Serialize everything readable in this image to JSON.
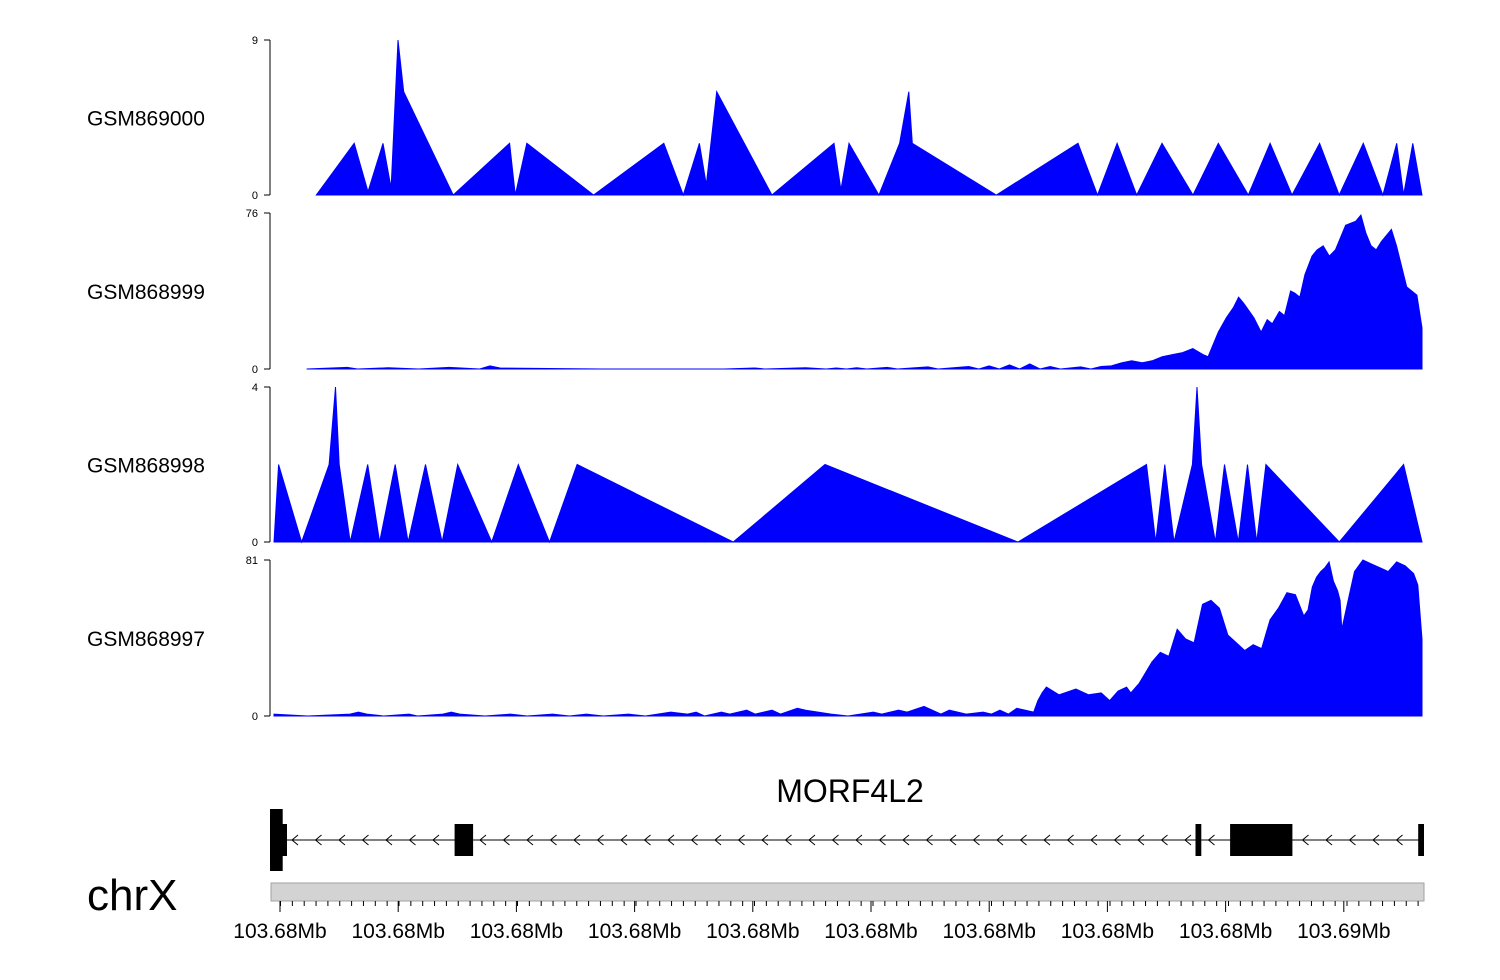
{
  "chart_data": {
    "type": "area",
    "x_unit": "Mb",
    "chromosome": "chrX",
    "gene_name": "MORF4L2",
    "x_tick_labels": [
      "103.68Mb",
      "103.68Mb",
      "103.68Mb",
      "103.68Mb",
      "103.68Mb",
      "103.68Mb",
      "103.68Mb",
      "103.68Mb",
      "103.68Mb",
      "103.69Mb"
    ],
    "color": "#0000FF",
    "tracks": [
      {
        "name": "GSM869000",
        "ylim": [
          0,
          9
        ],
        "tick_labels": [
          "0",
          "9"
        ],
        "points": [
          [
            0.035,
            0
          ],
          [
            0.068,
            3
          ],
          [
            0.08,
            0.2
          ],
          [
            0.093,
            3
          ],
          [
            0.1,
            0.4
          ],
          [
            0.106,
            9
          ],
          [
            0.111,
            6
          ],
          [
            0.154,
            0
          ],
          [
            0.203,
            3
          ],
          [
            0.208,
            0
          ],
          [
            0.218,
            3
          ],
          [
            0.276,
            0
          ],
          [
            0.337,
            3
          ],
          [
            0.354,
            0
          ],
          [
            0.368,
            3
          ],
          [
            0.374,
            0.6
          ],
          [
            0.383,
            6
          ],
          [
            0.431,
            0
          ],
          [
            0.485,
            3
          ],
          [
            0.491,
            0.3
          ],
          [
            0.498,
            3
          ],
          [
            0.524,
            0
          ],
          [
            0.542,
            3
          ],
          [
            0.55,
            6
          ],
          [
            0.553,
            3
          ],
          [
            0.626,
            0
          ],
          [
            0.697,
            3
          ],
          [
            0.714,
            0
          ],
          [
            0.731,
            3
          ],
          [
            0.748,
            0
          ],
          [
            0.77,
            3
          ],
          [
            0.797,
            0
          ],
          [
            0.819,
            3
          ],
          [
            0.845,
            0
          ],
          [
            0.864,
            3
          ],
          [
            0.883,
            0
          ],
          [
            0.907,
            3
          ],
          [
            0.924,
            0
          ],
          [
            0.945,
            3
          ],
          [
            0.962,
            0
          ],
          [
            0.974,
            3
          ],
          [
            0.98,
            0
          ],
          [
            0.988,
            3
          ],
          [
            0.996,
            0
          ]
        ]
      },
      {
        "name": "GSM868999",
        "ylim": [
          0,
          76
        ],
        "tick_labels": [
          "0",
          "76"
        ],
        "points": [
          [
            0.03,
            0
          ],
          [
            0.07,
            0.8
          ],
          [
            0.08,
            0
          ],
          [
            0.11,
            0.6
          ],
          [
            0.14,
            0
          ],
          [
            0.17,
            0.8
          ],
          [
            0.2,
            0
          ],
          [
            0.21,
            1.5
          ],
          [
            0.22,
            0.5
          ],
          [
            0.32,
            0
          ],
          [
            0.44,
            0
          ],
          [
            0.47,
            0.5
          ],
          [
            0.48,
            0
          ],
          [
            0.52,
            0.6
          ],
          [
            0.54,
            0
          ],
          [
            0.55,
            0.5
          ],
          [
            0.56,
            0
          ],
          [
            0.57,
            0.6
          ],
          [
            0.58,
            0
          ],
          [
            0.6,
            0.8
          ],
          [
            0.61,
            0
          ],
          [
            0.64,
            1
          ],
          [
            0.65,
            0
          ],
          [
            0.68,
            1.2
          ],
          [
            0.69,
            0
          ],
          [
            0.7,
            1.5
          ],
          [
            0.71,
            0
          ],
          [
            0.72,
            2
          ],
          [
            0.73,
            0
          ],
          [
            0.74,
            2.5
          ],
          [
            0.75,
            0
          ],
          [
            0.76,
            1.2
          ],
          [
            0.77,
            0
          ],
          [
            0.79,
            1
          ],
          [
            0.8,
            0
          ],
          [
            0.81,
            1.2
          ],
          [
            0.82,
            1.5
          ],
          [
            0.83,
            3
          ],
          [
            0.84,
            4
          ],
          [
            0.85,
            3
          ],
          [
            0.86,
            4
          ],
          [
            0.87,
            6
          ],
          [
            0.88,
            7
          ],
          [
            0.89,
            8
          ],
          [
            0.9,
            10
          ],
          [
            0.91,
            7
          ],
          [
            0.915,
            6
          ],
          [
            0.925,
            18
          ],
          [
            0.933,
            25
          ],
          [
            0.94,
            30
          ],
          [
            0.945,
            35
          ],
          [
            0.95,
            32
          ],
          [
            0.96,
            25
          ],
          [
            0.967,
            18
          ],
          [
            0.973,
            24
          ],
          [
            0.978,
            22
          ],
          [
            0.985,
            28
          ],
          [
            0.99,
            26
          ],
          [
            0.996,
            38
          ],
          [
            1.0,
            37
          ],
          [
            1.005,
            35
          ],
          [
            1.01,
            46
          ],
          [
            1.017,
            55
          ],
          [
            1.022,
            58
          ],
          [
            1.028,
            60
          ],
          [
            1.034,
            55
          ],
          [
            1.04,
            58
          ],
          [
            1.05,
            70
          ],
          [
            1.06,
            72
          ],
          [
            1.065,
            75
          ],
          [
            1.07,
            66
          ],
          [
            1.075,
            60
          ],
          [
            1.08,
            58
          ],
          [
            1.085,
            62
          ],
          [
            1.09,
            65
          ],
          [
            1.095,
            68
          ],
          [
            1.1,
            60
          ],
          [
            1.11,
            40
          ],
          [
            1.115,
            38
          ],
          [
            1.12,
            36
          ],
          [
            1.125,
            20
          ]
        ]
      },
      {
        "name": "GSM868998",
        "ylim": [
          0,
          4
        ],
        "tick_labels": [
          "0",
          "4"
        ],
        "points": [
          [
            0.0,
            0
          ],
          [
            0.005,
            2
          ],
          [
            0.03,
            0
          ],
          [
            0.06,
            2
          ],
          [
            0.067,
            4
          ],
          [
            0.071,
            2
          ],
          [
            0.083,
            0
          ],
          [
            0.102,
            2
          ],
          [
            0.115,
            0
          ],
          [
            0.132,
            2
          ],
          [
            0.146,
            0
          ],
          [
            0.165,
            2
          ],
          [
            0.183,
            0
          ],
          [
            0.2,
            2
          ],
          [
            0.237,
            0
          ],
          [
            0.266,
            2
          ],
          [
            0.3,
            0
          ],
          [
            0.33,
            2
          ],
          [
            0.5,
            0
          ],
          [
            0.6,
            2
          ],
          [
            0.81,
            0
          ],
          [
            0.95,
            2
          ],
          [
            0.96,
            0
          ],
          [
            0.97,
            2
          ],
          [
            0.98,
            0
          ],
          [
            1.0,
            2
          ],
          [
            1.005,
            4
          ],
          [
            1.01,
            2
          ],
          [
            1.025,
            0
          ],
          [
            1.035,
            2
          ],
          [
            1.05,
            0
          ],
          [
            1.06,
            2
          ],
          [
            1.07,
            0
          ],
          [
            1.08,
            2
          ],
          [
            1.16,
            0
          ],
          [
            1.23,
            2
          ],
          [
            1.25,
            0
          ]
        ]
      },
      {
        "name": "GSM868997",
        "ylim": [
          0,
          81
        ],
        "tick_labels": [
          "0",
          "81"
        ],
        "points": [
          [
            0.0,
            1
          ],
          [
            0.04,
            0
          ],
          [
            0.09,
            1
          ],
          [
            0.1,
            2
          ],
          [
            0.11,
            1
          ],
          [
            0.13,
            0
          ],
          [
            0.16,
            1
          ],
          [
            0.17,
            0
          ],
          [
            0.2,
            1
          ],
          [
            0.21,
            2
          ],
          [
            0.22,
            1
          ],
          [
            0.25,
            0
          ],
          [
            0.28,
            1
          ],
          [
            0.3,
            0
          ],
          [
            0.33,
            1
          ],
          [
            0.35,
            0
          ],
          [
            0.37,
            1
          ],
          [
            0.39,
            0
          ],
          [
            0.42,
            1
          ],
          [
            0.44,
            0
          ],
          [
            0.47,
            2
          ],
          [
            0.49,
            1
          ],
          [
            0.5,
            2
          ],
          [
            0.51,
            0
          ],
          [
            0.53,
            2
          ],
          [
            0.54,
            1
          ],
          [
            0.56,
            3
          ],
          [
            0.57,
            1
          ],
          [
            0.59,
            3
          ],
          [
            0.6,
            1
          ],
          [
            0.62,
            4
          ],
          [
            0.63,
            3
          ],
          [
            0.66,
            1
          ],
          [
            0.68,
            0
          ],
          [
            0.71,
            2
          ],
          [
            0.72,
            1
          ],
          [
            0.74,
            3
          ],
          [
            0.75,
            2
          ],
          [
            0.77,
            5
          ],
          [
            0.79,
            1
          ],
          [
            0.8,
            3
          ],
          [
            0.82,
            1
          ],
          [
            0.84,
            2
          ],
          [
            0.85,
            1
          ],
          [
            0.86,
            3
          ],
          [
            0.87,
            1
          ],
          [
            0.88,
            4
          ],
          [
            0.9,
            2
          ],
          [
            0.905,
            8
          ],
          [
            0.91,
            12
          ],
          [
            0.915,
            15
          ],
          [
            0.93,
            11
          ],
          [
            0.95,
            14
          ],
          [
            0.965,
            11
          ],
          [
            0.98,
            12
          ],
          [
            0.99,
            8
          ],
          [
            1.0,
            13
          ],
          [
            1.01,
            15
          ],
          [
            1.015,
            12
          ],
          [
            1.025,
            17
          ],
          [
            1.04,
            28
          ],
          [
            1.05,
            33
          ],
          [
            1.06,
            31
          ],
          [
            1.07,
            45
          ],
          [
            1.08,
            40
          ],
          [
            1.09,
            38
          ],
          [
            1.1,
            58
          ],
          [
            1.11,
            60
          ],
          [
            1.12,
            56
          ],
          [
            1.13,
            42
          ],
          [
            1.14,
            38
          ],
          [
            1.15,
            34
          ],
          [
            1.16,
            37
          ],
          [
            1.17,
            35
          ],
          [
            1.18,
            50
          ],
          [
            1.19,
            56
          ],
          [
            1.2,
            64
          ],
          [
            1.21,
            63
          ],
          [
            1.22,
            52
          ],
          [
            1.225,
            55
          ],
          [
            1.23,
            67
          ],
          [
            1.235,
            72
          ],
          [
            1.24,
            75
          ],
          [
            1.245,
            77
          ],
          [
            1.25,
            80
          ],
          [
            1.255,
            70
          ],
          [
            1.26,
            65
          ],
          [
            1.263,
            60
          ],
          [
            1.265,
            45
          ],
          [
            1.27,
            55
          ],
          [
            1.28,
            75
          ],
          [
            1.29,
            81
          ],
          [
            1.3,
            79
          ],
          [
            1.31,
            77
          ],
          [
            1.315,
            76
          ],
          [
            1.32,
            75
          ],
          [
            1.33,
            80
          ],
          [
            1.34,
            78
          ],
          [
            1.345,
            76
          ],
          [
            1.35,
            74
          ],
          [
            1.355,
            68
          ],
          [
            1.36,
            40
          ]
        ]
      }
    ],
    "gene_model": {
      "strand": "-",
      "exons": [
        [
          0.0,
          0.011
        ],
        [
          0.16,
          0.176
        ],
        [
          0.802,
          0.807
        ],
        [
          0.832,
          0.886
        ],
        [
          0.995,
          1.0
        ]
      ],
      "tall_exons": [
        [
          0.0,
          0.011
        ]
      ]
    }
  }
}
